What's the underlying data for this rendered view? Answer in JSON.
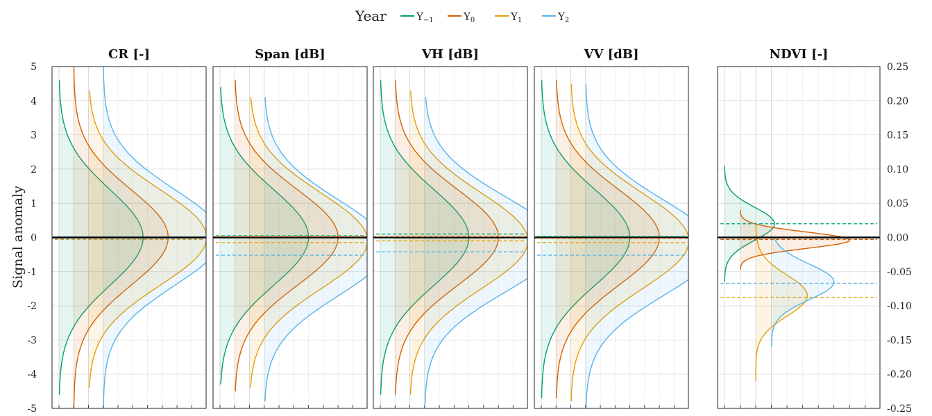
{
  "legend": {
    "title": "Year",
    "items": [
      {
        "base": "Y",
        "sub": "−1",
        "color": "#009e73"
      },
      {
        "base": "Y",
        "sub": "0",
        "color": "#d55e00"
      },
      {
        "base": "Y",
        "sub": "1",
        "color": "#e69f00"
      },
      {
        "base": "Y",
        "sub": "2",
        "color": "#56b4e9"
      }
    ]
  },
  "y_label": "Signal anomaly",
  "chart_data": {
    "type": "density-ridge",
    "shared_left_axis": {
      "ylim": [
        -5,
        5
      ],
      "ticks": [
        5,
        4,
        3,
        2,
        1,
        0,
        -1,
        -2,
        -3,
        -4,
        -5
      ]
    },
    "right_axis": {
      "ylim": [
        -0.25,
        0.25
      ],
      "ticks": [
        "0.25",
        "0.20",
        "0.15",
        "0.10",
        "0.05",
        "0.00",
        "-0.05",
        "-0.10",
        "-0.15",
        "-0.20",
        "-0.25"
      ]
    },
    "grid": true,
    "zero_line": true,
    "panels": [
      {
        "title": "CR [-]",
        "series": [
          {
            "year": "Y−1",
            "color": "#009e73",
            "baseline": 0.0,
            "peak": 5.7,
            "center": 0.0,
            "sigma": 1.4,
            "ymin": -4.6,
            "ymax": 4.6,
            "median": -0.05
          },
          {
            "year": "Y0",
            "color": "#d55e00",
            "baseline": 1.0,
            "peak": 6.4,
            "center": 0.0,
            "sigma": 1.4,
            "ymin": -5.0,
            "ymax": 5.0,
            "median": -0.03
          },
          {
            "year": "Y1",
            "color": "#e69f00",
            "baseline": 2.0,
            "peak": 8.0,
            "center": 0.0,
            "sigma": 1.4,
            "ymin": -4.4,
            "ymax": 4.3,
            "median": -0.06
          },
          {
            "year": "Y2",
            "color": "#56b4e9",
            "baseline": 3.0,
            "peak": 8.0,
            "center": 0.0,
            "sigma": 1.4,
            "ymin": -5.0,
            "ymax": 5.0,
            "median": -0.04
          }
        ]
      },
      {
        "title": "Span [dB]",
        "series": [
          {
            "year": "Y−1",
            "color": "#009e73",
            "baseline": 0.0,
            "peak": 6.0,
            "center": 0.0,
            "sigma": 1.4,
            "ymin": -4.3,
            "ymax": 4.4,
            "median": 0.05
          },
          {
            "year": "Y0",
            "color": "#d55e00",
            "baseline": 1.0,
            "peak": 7.0,
            "center": 0.0,
            "sigma": 1.4,
            "ymin": -4.5,
            "ymax": 4.6,
            "median": 0.02
          },
          {
            "year": "Y1",
            "color": "#e69f00",
            "baseline": 2.0,
            "peak": 8.0,
            "center": -0.1,
            "sigma": 1.4,
            "ymin": -4.4,
            "ymax": 4.1,
            "median": -0.15
          },
          {
            "year": "Y2",
            "color": "#56b4e9",
            "baseline": 3.0,
            "peak": 8.3,
            "center": -0.3,
            "sigma": 1.4,
            "ymin": -4.8,
            "ymax": 4.1,
            "median": -0.52
          }
        ]
      },
      {
        "title": "VH [dB]",
        "series": [
          {
            "year": "Y−1",
            "color": "#009e73",
            "baseline": 0.0,
            "peak": 6.0,
            "center": 0.0,
            "sigma": 1.4,
            "ymin": -4.6,
            "ymax": 4.6,
            "median": 0.1
          },
          {
            "year": "Y0",
            "color": "#d55e00",
            "baseline": 1.0,
            "peak": 7.0,
            "center": 0.0,
            "sigma": 1.4,
            "ymin": -4.6,
            "ymax": 4.6,
            "median": 0.02
          },
          {
            "year": "Y1",
            "color": "#e69f00",
            "baseline": 2.0,
            "peak": 8.0,
            "center": -0.1,
            "sigma": 1.4,
            "ymin": -4.6,
            "ymax": 4.3,
            "median": -0.1
          },
          {
            "year": "Y2",
            "color": "#56b4e9",
            "baseline": 3.0,
            "peak": 9.0,
            "center": -0.2,
            "sigma": 1.4,
            "ymin": -4.9,
            "ymax": 4.1,
            "median": -0.42
          }
        ]
      },
      {
        "title": "VV [dB]",
        "series": [
          {
            "year": "Y−1",
            "color": "#009e73",
            "baseline": 0.0,
            "peak": 6.0,
            "center": 0.0,
            "sigma": 1.4,
            "ymin": -4.7,
            "ymax": 4.6,
            "median": 0.03
          },
          {
            "year": "Y0",
            "color": "#d55e00",
            "baseline": 1.0,
            "peak": 7.0,
            "center": 0.0,
            "sigma": 1.4,
            "ymin": -4.7,
            "ymax": 4.6,
            "median": -0.02
          },
          {
            "year": "Y1",
            "color": "#e69f00",
            "baseline": 2.0,
            "peak": 8.0,
            "center": -0.1,
            "sigma": 1.4,
            "ymin": -4.8,
            "ymax": 4.5,
            "median": -0.15
          },
          {
            "year": "Y2",
            "color": "#56b4e9",
            "baseline": 3.0,
            "peak": 8.7,
            "center": -0.3,
            "sigma": 1.4,
            "ymin": -5.0,
            "ymax": 4.5,
            "median": -0.52
          }
        ]
      },
      {
        "title": "NDVI [-]",
        "axis": "right",
        "series": [
          {
            "year": "Y−1",
            "color": "#009e73",
            "baseline": 0.0,
            "peak": 3.2,
            "center": 0.02,
            "sigma": 0.024,
            "ymin": -0.065,
            "ymax": 0.105,
            "median": 0.02
          },
          {
            "year": "Y0",
            "color": "#d55e00",
            "baseline": 1.0,
            "peak": 7.0,
            "center": -0.004,
            "sigma": 0.012,
            "ymin": -0.047,
            "ymax": 0.04,
            "median": -0.003
          },
          {
            "year": "Y1",
            "color": "#e69f00",
            "baseline": 2.0,
            "peak": 3.3,
            "center": -0.085,
            "sigma": 0.03,
            "ymin": -0.21,
            "ymax": 0.02,
            "median": -0.088
          },
          {
            "year": "Y2",
            "color": "#56b4e9",
            "baseline": 3.0,
            "peak": 4.0,
            "center": -0.065,
            "sigma": 0.026,
            "ymin": -0.16,
            "ymax": 0.0,
            "median": -0.067
          }
        ]
      }
    ]
  }
}
